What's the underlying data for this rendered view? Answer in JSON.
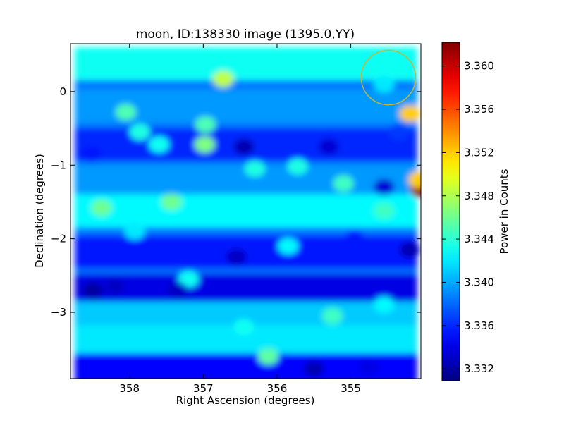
{
  "chart_data": {
    "type": "heatmap",
    "title": "moon, ID:138330 image (1395.0,YY)",
    "xlabel": "Right Ascension (degrees)",
    "ylabel": "Declination (degrees)",
    "xlim": [
      358.8,
      354.05
    ],
    "ylim": [
      -3.9,
      0.65
    ],
    "x_ticks": [
      358,
      357,
      356,
      355
    ],
    "x_tick_labels": [
      "358",
      "357",
      "356",
      "355"
    ],
    "y_ticks": [
      0,
      -1,
      -2,
      -3
    ],
    "y_tick_labels": [
      "0",
      "−1",
      "−2",
      "−3"
    ],
    "colorbar": {
      "label": "Power in Counts",
      "colormap": "jet",
      "range": [
        3.3309,
        3.3622
      ],
      "ticks": [
        3.332,
        3.336,
        3.34,
        3.344,
        3.348,
        3.352,
        3.356,
        3.36
      ],
      "tick_labels": [
        "3.332",
        "3.336",
        "3.340",
        "3.344",
        "3.348",
        "3.352",
        "3.356",
        "3.360"
      ]
    },
    "field_extent": {
      "ra": [
        358.74,
        354.1
      ],
      "dec": [
        -3.88,
        0.6
      ]
    },
    "baseline_value": 3.3385,
    "bands": [
      {
        "dec": 0.38,
        "value": 3.343
      },
      {
        "dec": -0.2,
        "value": 3.3395
      },
      {
        "dec": -0.72,
        "value": 3.336
      },
      {
        "dec": -1.22,
        "value": 3.3395
      },
      {
        "dec": -1.62,
        "value": 3.3425
      },
      {
        "dec": -2.18,
        "value": 3.3355
      },
      {
        "dec": -2.7,
        "value": 3.334
      },
      {
        "dec": -3.08,
        "value": 3.341
      },
      {
        "dec": -3.4,
        "value": 3.342
      },
      {
        "dec": -3.78,
        "value": 3.335
      }
    ],
    "blobs": [
      {
        "ra": 354.05,
        "dec": -1.33,
        "value": 3.3615
      },
      {
        "ra": 354.08,
        "dec": -1.2,
        "value": 3.352
      },
      {
        "ra": 354.2,
        "dec": -0.3,
        "value": 3.352
      },
      {
        "ra": 356.73,
        "dec": 0.17,
        "value": 3.3485
      },
      {
        "ra": 356.98,
        "dec": -0.72,
        "value": 3.3465
      },
      {
        "ra": 356.97,
        "dec": -0.45,
        "value": 3.345
      },
      {
        "ra": 357.43,
        "dec": -1.5,
        "value": 3.346
      },
      {
        "ra": 358.38,
        "dec": -1.58,
        "value": 3.346
      },
      {
        "ra": 358.05,
        "dec": -0.28,
        "value": 3.345
      },
      {
        "ra": 356.12,
        "dec": -3.6,
        "value": 3.3455
      },
      {
        "ra": 355.1,
        "dec": -1.25,
        "value": 3.3445
      },
      {
        "ra": 354.55,
        "dec": -1.62,
        "value": 3.3445
      },
      {
        "ra": 355.72,
        "dec": -1.02,
        "value": 3.3435
      },
      {
        "ra": 356.3,
        "dec": -1.05,
        "value": 3.3435
      },
      {
        "ra": 355.25,
        "dec": -3.05,
        "value": 3.3445
      },
      {
        "ra": 357.2,
        "dec": -2.55,
        "value": 3.343
      },
      {
        "ra": 357.6,
        "dec": -0.72,
        "value": 3.343
      },
      {
        "ra": 357.86,
        "dec": -0.55,
        "value": 3.3435
      },
      {
        "ra": 357.93,
        "dec": -1.9,
        "value": 3.342
      },
      {
        "ra": 354.55,
        "dec": -2.9,
        "value": 3.3425
      },
      {
        "ra": 356.45,
        "dec": -3.2,
        "value": 3.343
      },
      {
        "ra": 355.85,
        "dec": -2.1,
        "value": 3.3425
      },
      {
        "ra": 354.55,
        "dec": 0.1,
        "value": 3.342
      },
      {
        "ra": 354.35,
        "dec": -0.55,
        "value": 3.3365
      },
      {
        "ra": 356.45,
        "dec": -0.75,
        "value": 3.3325
      },
      {
        "ra": 355.3,
        "dec": -0.75,
        "value": 3.3335
      },
      {
        "ra": 358.5,
        "dec": -2.7,
        "value": 3.332
      },
      {
        "ra": 358.2,
        "dec": -2.65,
        "value": 3.333
      },
      {
        "ra": 357.35,
        "dec": -2.7,
        "value": 3.333
      },
      {
        "ra": 356.55,
        "dec": -2.25,
        "value": 3.333
      },
      {
        "ra": 354.55,
        "dec": -1.3,
        "value": 3.3335
      },
      {
        "ra": 354.2,
        "dec": -2.15,
        "value": 3.3325
      },
      {
        "ra": 355.5,
        "dec": -3.77,
        "value": 3.3325
      },
      {
        "ra": 354.75,
        "dec": -3.75,
        "value": 3.334
      },
      {
        "ra": 358.52,
        "dec": -0.85,
        "value": 3.3355
      },
      {
        "ra": 354.95,
        "dec": -2.0,
        "value": 3.3355
      }
    ],
    "annotations": [
      {
        "type": "circle",
        "ra": 354.49,
        "dec": 0.19,
        "radius_deg": 0.37,
        "color": "#c8b432"
      }
    ],
    "grid": false
  }
}
